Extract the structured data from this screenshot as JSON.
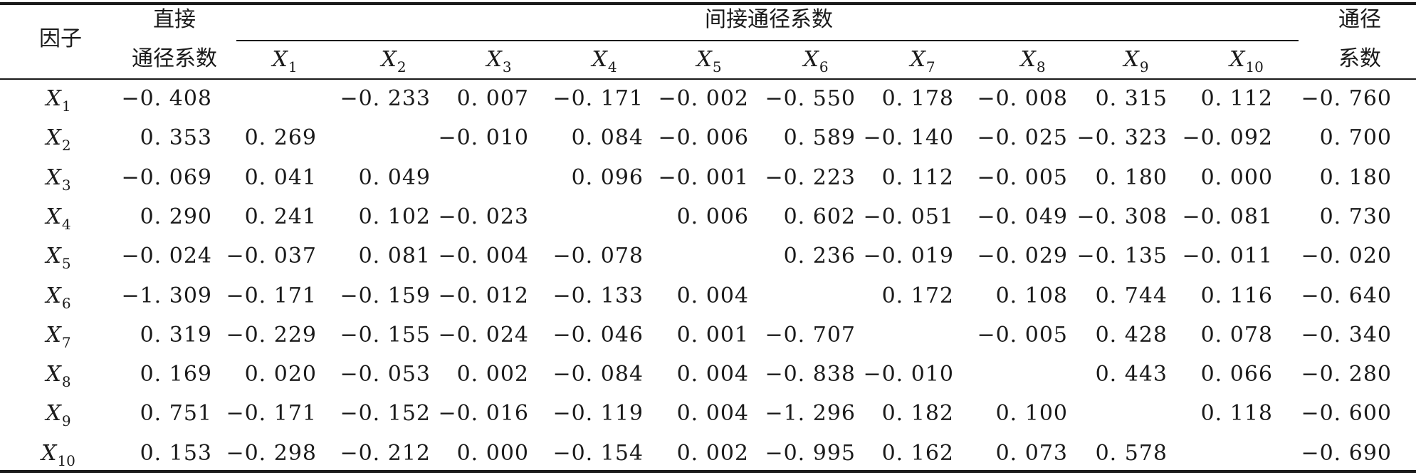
{
  "header": {
    "factor": "因子",
    "direct_line1": "直接",
    "direct_line2": "通径系数",
    "indirect": "间接通径系数",
    "total_line1": "通径",
    "total_line2": "系数",
    "columns": [
      {
        "base": "X",
        "sub": "1"
      },
      {
        "base": "X",
        "sub": "2"
      },
      {
        "base": "X",
        "sub": "3"
      },
      {
        "base": "X",
        "sub": "4"
      },
      {
        "base": "X",
        "sub": "5"
      },
      {
        "base": "X",
        "sub": "6"
      },
      {
        "base": "X",
        "sub": "7"
      },
      {
        "base": "X",
        "sub": "8"
      },
      {
        "base": "X",
        "sub": "9"
      },
      {
        "base": "X",
        "sub": "10"
      }
    ]
  },
  "rows": [
    {
      "base": "X",
      "sub": "1",
      "direct": "−0. 408",
      "indirect": [
        "",
        "−0. 233",
        "0. 007",
        "−0. 171",
        "−0. 002",
        "−0. 550",
        "0. 178",
        "−0. 008",
        "0. 315",
        "0. 112"
      ],
      "total": "−0. 760"
    },
    {
      "base": "X",
      "sub": "2",
      "direct": "0. 353",
      "indirect": [
        "0. 269",
        "",
        "−0. 010",
        "0. 084",
        "−0. 006",
        "0. 589",
        "−0. 140",
        "−0. 025",
        "−0. 323",
        "−0. 092"
      ],
      "total": "0. 700"
    },
    {
      "base": "X",
      "sub": "3",
      "direct": "−0. 069",
      "indirect": [
        "0. 041",
        "0. 049",
        "",
        "0. 096",
        "−0. 001",
        "−0. 223",
        "0. 112",
        "−0. 005",
        "0. 180",
        "0. 000"
      ],
      "total": "0. 180"
    },
    {
      "base": "X",
      "sub": "4",
      "direct": "0. 290",
      "indirect": [
        "0. 241",
        "0. 102",
        "−0. 023",
        "",
        "0. 006",
        "0. 602",
        "−0. 051",
        "−0. 049",
        "−0. 308",
        "−0. 081"
      ],
      "total": "0. 730"
    },
    {
      "base": "X",
      "sub": "5",
      "direct": "−0. 024",
      "indirect": [
        "−0. 037",
        "0. 081",
        "−0. 004",
        "−0. 078",
        "",
        "0. 236",
        "−0. 019",
        "−0. 029",
        "−0. 135",
        "−0. 011"
      ],
      "total": "−0. 020"
    },
    {
      "base": "X",
      "sub": "6",
      "direct": "−1. 309",
      "indirect": [
        "−0. 171",
        "−0. 159",
        "−0. 012",
        "−0. 133",
        "0. 004",
        "",
        "0. 172",
        "0. 108",
        "0. 744",
        "0. 116"
      ],
      "total": "−0. 640"
    },
    {
      "base": "X",
      "sub": "7",
      "direct": "0. 319",
      "indirect": [
        "−0. 229",
        "−0. 155",
        "−0. 024",
        "−0. 046",
        "0. 001",
        "−0. 707",
        "",
        "−0. 005",
        "0. 428",
        "0. 078"
      ],
      "total": "−0. 340"
    },
    {
      "base": "X",
      "sub": "8",
      "direct": "0. 169",
      "indirect": [
        "0. 020",
        "−0. 053",
        "0. 002",
        "−0. 084",
        "0. 004",
        "−0. 838",
        "−0. 010",
        "",
        "0. 443",
        "0. 066"
      ],
      "total": "−0. 280"
    },
    {
      "base": "X",
      "sub": "9",
      "direct": "0. 751",
      "indirect": [
        "−0. 171",
        "−0. 152",
        "−0. 016",
        "−0. 119",
        "0. 004",
        "−1. 296",
        "0. 182",
        "0. 100",
        "",
        "0. 118"
      ],
      "total": "−0. 600"
    },
    {
      "base": "X",
      "sub": "10",
      "direct": "0. 153",
      "indirect": [
        "−0. 298",
        "−0. 212",
        "0. 000",
        "−0. 154",
        "0. 002",
        "−0. 995",
        "0. 162",
        "0. 073",
        "0. 578",
        ""
      ],
      "total": "−0. 690"
    }
  ]
}
